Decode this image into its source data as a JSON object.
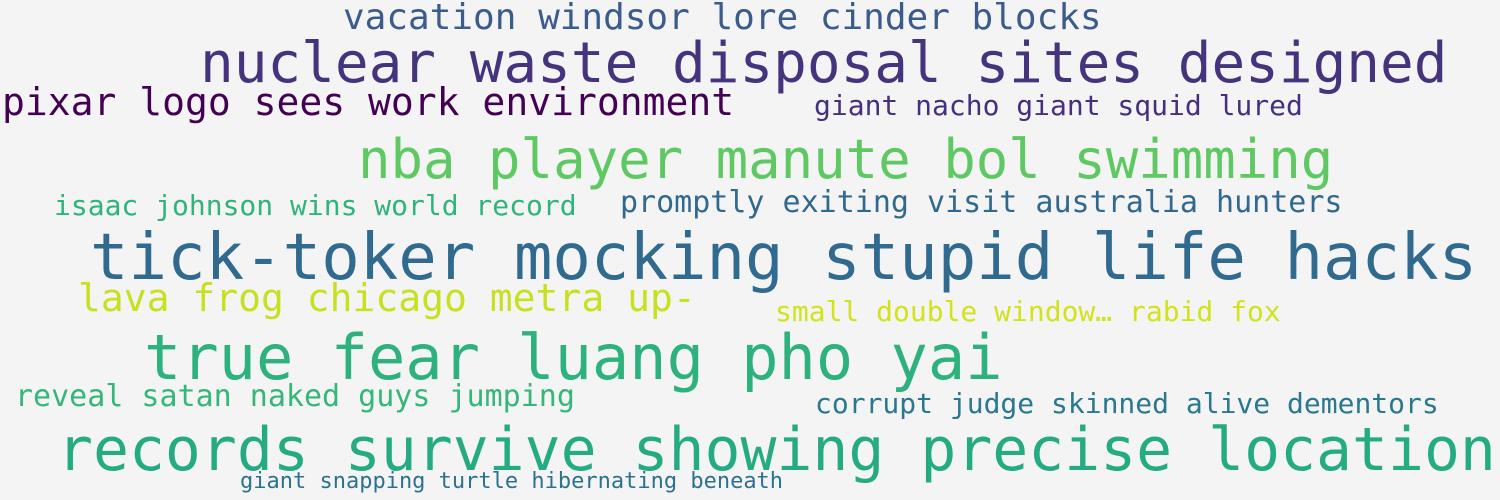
{
  "wordcloud": {
    "phrases": [
      {
        "text": "vacation windsor lore cinder blocks",
        "color": "#3b5b8c"
      },
      {
        "text": "nuclear waste disposal sites designed",
        "color": "#46337e"
      },
      {
        "text": "pixar logo sees work environment",
        "color": "#440154"
      },
      {
        "text": "giant nacho giant squid lured",
        "color": "#472f7d"
      },
      {
        "text": "nba player manute bol swimming",
        "color": "#5ec962"
      },
      {
        "text": "isaac johnson wins world record",
        "color": "#2fb47c"
      },
      {
        "text": "promptly exiting visit australia hunters",
        "color": "#31688e"
      },
      {
        "text": "tick-toker mocking stupid life hacks",
        "color": "#306a8e"
      },
      {
        "text": "lava frog chicago metra up-",
        "color": "#c8e020"
      },
      {
        "text": "small double window… rabid fox",
        "color": "#d2e21b"
      },
      {
        "text": "true fear luang pho yai",
        "color": "#2db27d"
      },
      {
        "text": "reveal satan naked guys jumping",
        "color": "#35b779"
      },
      {
        "text": "corrupt judge skinned alive dementors",
        "color": "#2a788e"
      },
      {
        "text": "records survive showing precise location",
        "color": "#25ab82"
      },
      {
        "text": "giant snapping turtle hibernating beneath",
        "color": "#2c728e"
      }
    ]
  }
}
